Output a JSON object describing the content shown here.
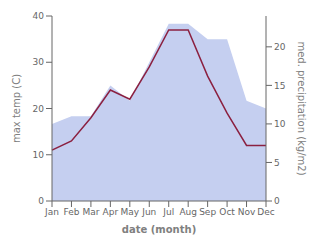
{
  "chart_data": {
    "type": "line",
    "categories": [
      "Jan",
      "Feb",
      "Mar",
      "Apr",
      "May",
      "Jun",
      "Jul",
      "Aug",
      "Sep",
      "Oct",
      "Nov",
      "Dec"
    ],
    "xlabel": "date (month)",
    "ylabel": "max temp (C)",
    "y2label": "med. precipitation (kg/m2)",
    "ylim": [
      0,
      40
    ],
    "yticks": [
      0,
      10,
      20,
      30,
      40
    ],
    "y2lim": [
      0,
      24
    ],
    "y2ticks": [
      0,
      5,
      10,
      15,
      20
    ],
    "grid": false,
    "series": [
      {
        "type": "area",
        "axis": "y2",
        "color": "#c5cff0",
        "values": [
          10,
          11,
          11,
          15,
          13,
          18,
          23,
          23,
          21,
          21,
          13,
          12
        ]
      },
      {
        "type": "line",
        "axis": "y",
        "color": "#8b2040",
        "values": [
          11,
          13,
          18,
          24,
          22,
          29,
          37,
          37,
          27,
          19,
          12,
          12
        ]
      }
    ]
  }
}
